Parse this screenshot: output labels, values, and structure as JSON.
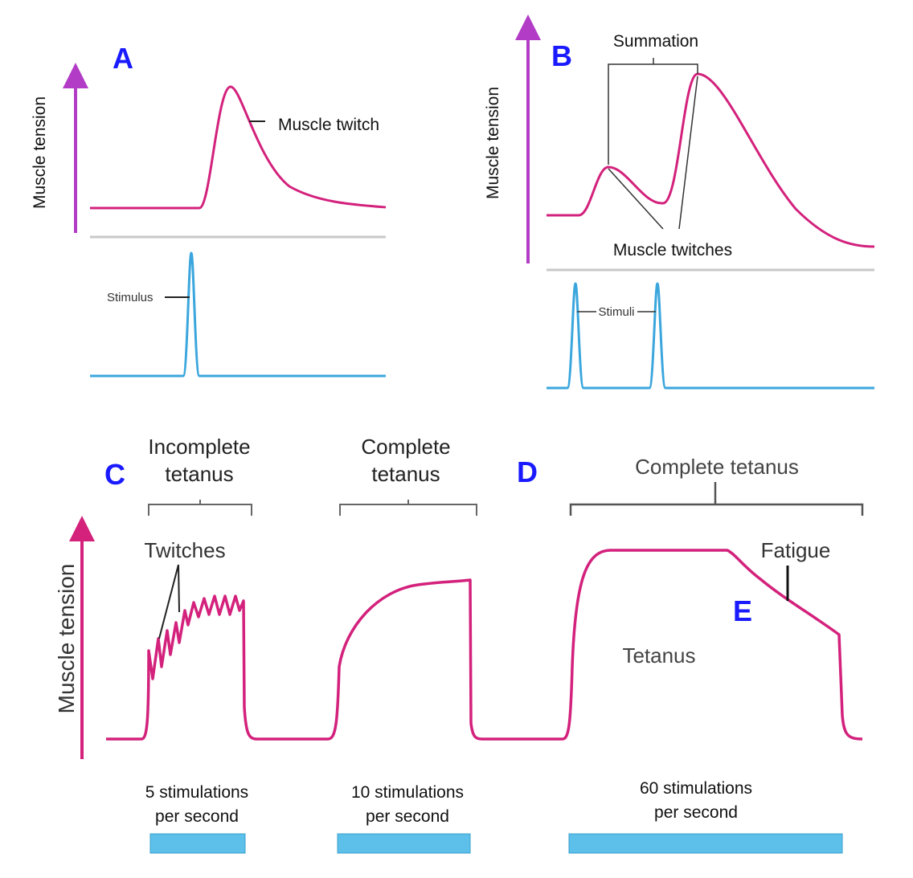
{
  "panel_a": {
    "letter": "A",
    "y_axis_label": "Muscle tension",
    "curve_label": "Muscle twitch",
    "stimulus_label": "Stimulus"
  },
  "panel_b": {
    "letter": "B",
    "y_axis_label": "Muscle tension",
    "summation_label": "Summation",
    "twitches_label": "Muscle twitches",
    "stimuli_label": "Stimuli"
  },
  "panel_bottom": {
    "letter_c": "C",
    "letter_d": "D",
    "letter_e": "E",
    "y_axis_label": "Muscle tension",
    "incomplete_tetanus": [
      "Incomplete",
      "tetanus"
    ],
    "complete_tetanus": [
      "Complete",
      "tetanus"
    ],
    "complete_tetanus_right": "Complete tetanus",
    "twitches_label": "Twitches",
    "fatigue_label": "Fatigue",
    "tetanus_label": "Tetanus",
    "stim_5": [
      "5 stimulations",
      "per second"
    ],
    "stim_10": [
      "10 stimulations",
      "per second"
    ],
    "stim_60": [
      "60 stimulations",
      "per second"
    ]
  },
  "colors": {
    "axis_purple": "#b23cc6",
    "curve_magenta": "#d3217c",
    "stimulus_blue": "#3aa6dd",
    "stim_bar": "#5cc0ea",
    "letter_blue": "#1a1aff"
  }
}
